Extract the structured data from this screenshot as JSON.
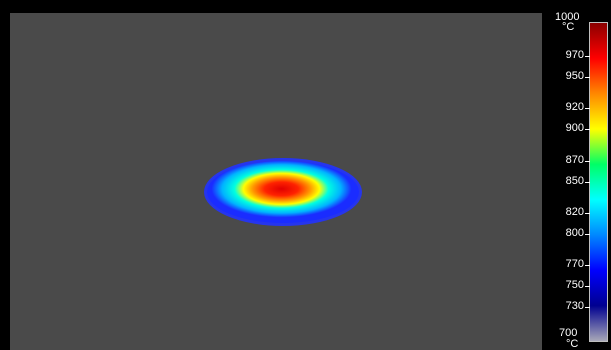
{
  "thermal_view": {
    "background_color": "#4a4a4a",
    "hotspot_colors": [
      "#1a2cff",
      "#00b4ff",
      "#00ffe0",
      "#ffff00",
      "#ff9900",
      "#ff2200",
      "#e00000"
    ]
  },
  "scale": {
    "max_label": "1000",
    "max_unit": "°C",
    "min_label": "700",
    "min_unit": "°C",
    "ticks": [
      "970",
      "950",
      "920",
      "900",
      "870",
      "850",
      "820",
      "800",
      "770",
      "750",
      "730"
    ],
    "gradient_colors": [
      "#8b0000",
      "#ff0000",
      "#ff8800",
      "#ffff00",
      "#00ff66",
      "#00ffff",
      "#0088ff",
      "#0000ff",
      "#000090",
      "#a8a8b8"
    ]
  }
}
